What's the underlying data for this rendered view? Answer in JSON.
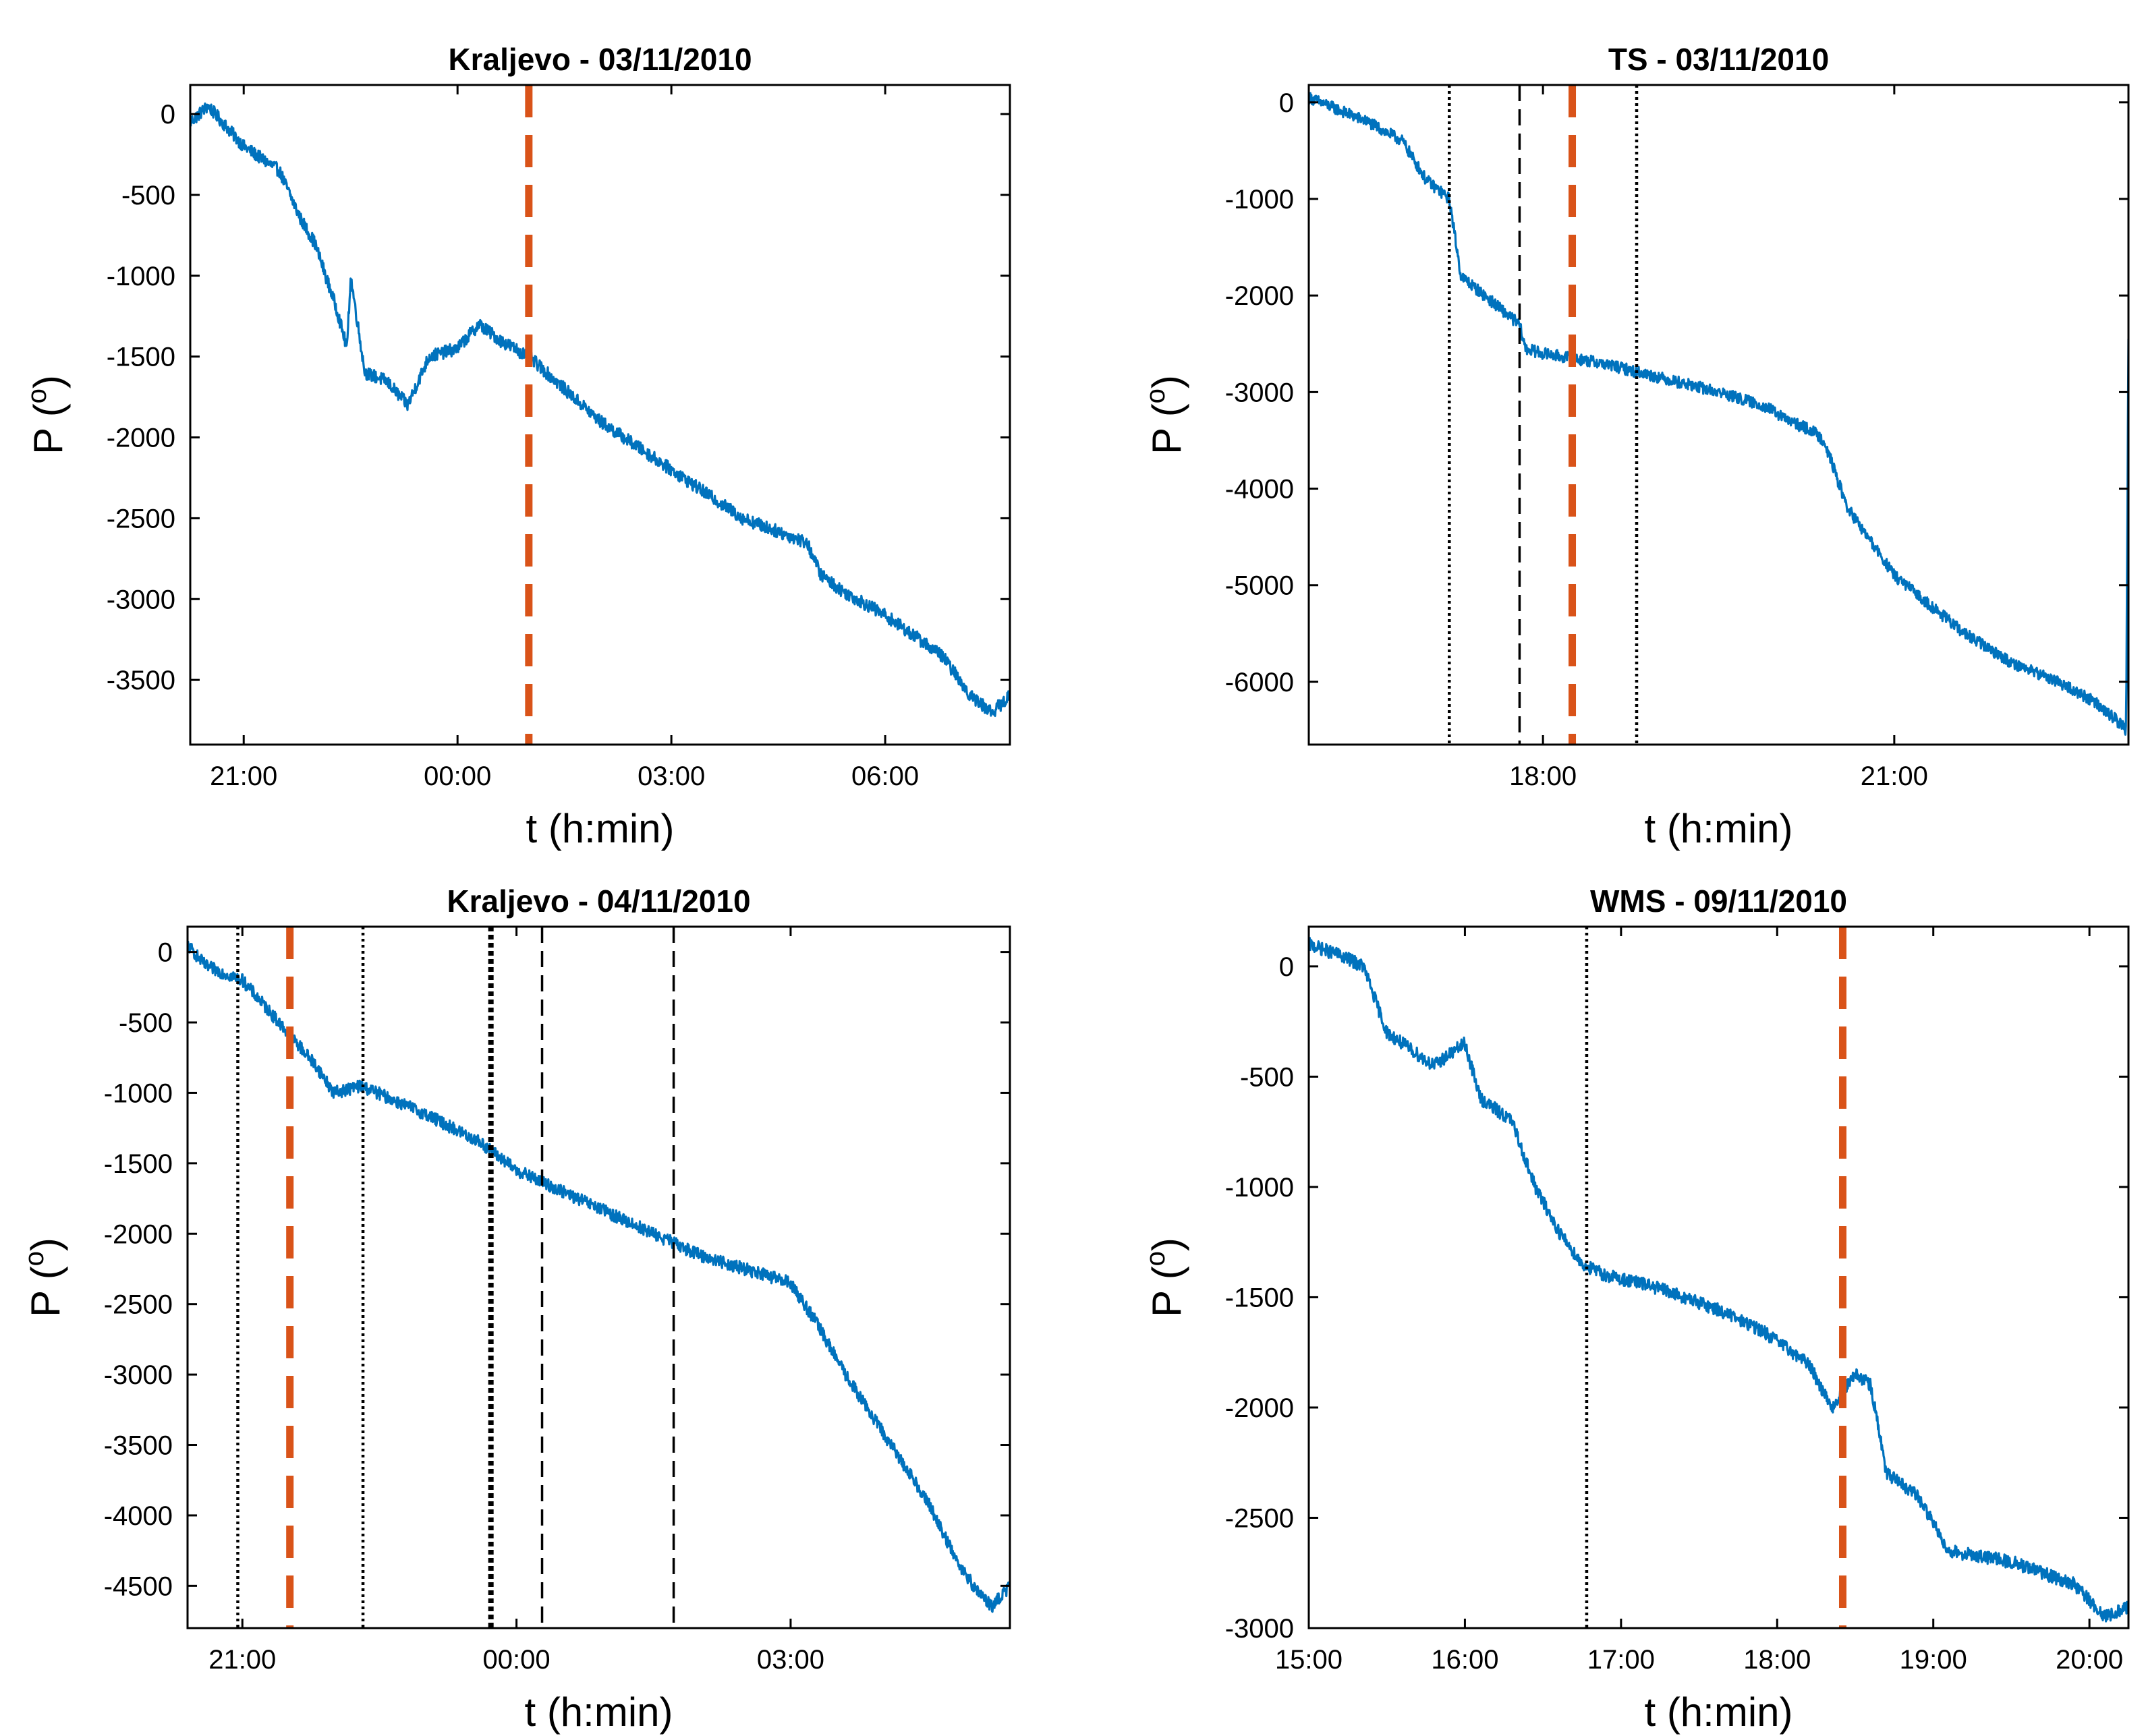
{
  "figure": {
    "background": "#ffffff"
  },
  "colors": {
    "series": "#0072BD",
    "event_line": "#D95319",
    "marker_line": "#000000",
    "axes": "#000000"
  },
  "chart_data": [
    {
      "type": "line",
      "title": "Kraljevo - 03/11/2010",
      "xlabel": "t (h:min)",
      "ylabel": "P (°)",
      "ylabel_main": "P (",
      "ylabel_sup": "o",
      "ylabel_close": ")",
      "x_unit": "hours since 00:00",
      "xlim": [
        -3.75,
        7.75
      ],
      "ylim": [
        -3900,
        180
      ],
      "xticks": [
        -3,
        0,
        3,
        6
      ],
      "xtick_labels": [
        "21:00",
        "00:00",
        "03:00",
        "06:00"
      ],
      "yticks": [
        0,
        -500,
        -1000,
        -1500,
        -2000,
        -2500,
        -3000,
        -3500
      ],
      "ytick_labels": [
        "0",
        "-500",
        "-1000",
        "-1500",
        "-2000",
        "-2500",
        "-3000",
        "-3500"
      ],
      "series": [
        {
          "name": "P",
          "noise": 40,
          "x": [
            -3.75,
            -3.5,
            -3.0,
            -2.5,
            -2.2,
            -2.0,
            -1.7,
            -1.55,
            -1.5,
            -1.3,
            -1.0,
            -0.7,
            -0.4,
            0.0,
            0.3,
            0.6,
            1.0,
            1.5,
            2.0,
            3.0,
            4.0,
            4.9,
            5.1,
            5.4,
            6.0,
            6.8,
            7.2,
            7.5,
            7.75
          ],
          "y": [
            -50,
            50,
            -200,
            -350,
            -650,
            -800,
            -1200,
            -1450,
            -1000,
            -1600,
            -1650,
            -1800,
            -1500,
            -1450,
            -1300,
            -1400,
            -1500,
            -1700,
            -1900,
            -2200,
            -2500,
            -2650,
            -2850,
            -2950,
            -3100,
            -3350,
            -3600,
            -3700,
            -3600
          ]
        }
      ],
      "vlines": [
        {
          "x": 1.0,
          "style": "orange-dash"
        }
      ]
    },
    {
      "type": "line",
      "title": "TS - 03/11/2010",
      "xlabel": "t (h:min)",
      "ylabel": "P (°)",
      "ylabel_main": "P (",
      "ylabel_sup": "o",
      "ylabel_close": ")",
      "x_unit": "hours since 00:00",
      "xlim": [
        16.0,
        23.0
      ],
      "ylim": [
        -6650,
        180
      ],
      "xticks": [
        18,
        21
      ],
      "xtick_labels": [
        "18:00",
        "21:00"
      ],
      "yticks": [
        0,
        -1000,
        -2000,
        -3000,
        -4000,
        -5000,
        -6000
      ],
      "ytick_labels": [
        "0",
        "-1000",
        "-2000",
        "-3000",
        "-4000",
        "-5000",
        "-6000"
      ],
      "series": [
        {
          "name": "P",
          "noise": 60,
          "x": [
            16.0,
            16.5,
            16.8,
            17.0,
            17.2,
            17.3,
            17.5,
            17.7,
            17.8,
            17.85,
            18.0,
            18.5,
            19.0,
            19.5,
            19.9,
            20.1,
            20.3,
            20.4,
            20.6,
            21.0,
            21.3,
            21.6,
            22.0,
            22.4,
            22.7,
            22.9,
            22.98,
            23.0
          ],
          "y": [
            50,
            -200,
            -400,
            -800,
            -1000,
            -1800,
            -2000,
            -2200,
            -2300,
            -2550,
            -2600,
            -2700,
            -2850,
            -3000,
            -3150,
            -3300,
            -3400,
            -3500,
            -4200,
            -4900,
            -5200,
            -5500,
            -5800,
            -6000,
            -6200,
            -6400,
            -6500,
            -2450
          ]
        }
      ],
      "vlines": [
        {
          "x": 17.2,
          "style": "dot"
        },
        {
          "x": 17.8,
          "style": "dash"
        },
        {
          "x": 18.25,
          "style": "orange-dash"
        },
        {
          "x": 18.8,
          "style": "dot"
        }
      ]
    },
    {
      "type": "line",
      "title": "Kraljevo - 04/11/2010",
      "xlabel": "t (h:min)",
      "ylabel": "P (°)",
      "ylabel_main": "P (",
      "ylabel_sup": "o",
      "ylabel_close": ")",
      "x_unit": "hours since 00:00",
      "xlim": [
        -3.6,
        5.4
      ],
      "ylim": [
        -4800,
        180
      ],
      "xticks": [
        -3,
        0,
        3
      ],
      "xtick_labels": [
        "21:00",
        "00:00",
        "03:00"
      ],
      "yticks": [
        0,
        -500,
        -1000,
        -1500,
        -2000,
        -2500,
        -3000,
        -3500,
        -4000,
        -4500
      ],
      "ytick_labels": [
        "0",
        "-500",
        "-1000",
        "-1500",
        "-2000",
        "-2500",
        "-3000",
        "-3500",
        "-4000",
        "-4500"
      ],
      "series": [
        {
          "name": "P",
          "noise": 45,
          "x": [
            -3.6,
            -3.4,
            -3.0,
            -2.8,
            -2.6,
            -2.4,
            -2.2,
            -2.0,
            -1.7,
            -1.0,
            -0.4,
            0.0,
            0.5,
            1.0,
            1.5,
            2.0,
            2.5,
            3.0,
            3.3,
            3.6,
            3.9,
            4.2,
            4.5,
            4.8,
            5.0,
            5.2,
            5.4
          ],
          "y": [
            50,
            -100,
            -200,
            -350,
            -500,
            -650,
            -800,
            -1000,
            -950,
            -1150,
            -1350,
            -1550,
            -1700,
            -1850,
            -2000,
            -2150,
            -2250,
            -2350,
            -2650,
            -3000,
            -3300,
            -3600,
            -3900,
            -4300,
            -4500,
            -4650,
            -4500
          ]
        }
      ],
      "vlines": [
        {
          "x": -3.05,
          "style": "dot"
        },
        {
          "x": -2.48,
          "style": "orange-dash"
        },
        {
          "x": -1.68,
          "style": "dot"
        },
        {
          "x": -0.28,
          "style": "thick-dot"
        },
        {
          "x": 0.28,
          "style": "dash"
        },
        {
          "x": 1.72,
          "style": "dash"
        }
      ]
    },
    {
      "type": "line",
      "title": "WMS - 09/11/2010",
      "xlabel": "t (h:min)",
      "ylabel": "P (°)",
      "ylabel_main": "P (",
      "ylabel_sup": "o",
      "ylabel_close": ")",
      "x_unit": "hours since 00:00",
      "xlim": [
        15.0,
        20.25
      ],
      "ylim": [
        -3000,
        180
      ],
      "xticks": [
        15,
        16,
        17,
        18,
        19,
        20
      ],
      "xtick_labels": [
        "15:00",
        "16:00",
        "17:00",
        "18:00",
        "19:00",
        "20:00"
      ],
      "yticks": [
        0,
        -500,
        -1000,
        -1500,
        -2000,
        -2500,
        -3000
      ],
      "ytick_labels": [
        "0",
        "-500",
        "-1000",
        "-1500",
        "-2000",
        "-2500",
        "-3000"
      ],
      "series": [
        {
          "name": "P",
          "noise": 30,
          "x": [
            15.0,
            15.2,
            15.35,
            15.5,
            15.8,
            16.0,
            16.1,
            16.3,
            16.45,
            16.6,
            16.75,
            16.9,
            17.2,
            17.6,
            17.9,
            18.2,
            18.35,
            18.5,
            18.6,
            18.7,
            18.9,
            19.1,
            19.5,
            19.9,
            20.1,
            20.25
          ],
          "y": [
            100,
            50,
            0,
            -300,
            -450,
            -350,
            -600,
            -700,
            -1000,
            -1200,
            -1350,
            -1400,
            -1450,
            -1550,
            -1650,
            -1800,
            -2000,
            -1850,
            -1900,
            -2300,
            -2400,
            -2650,
            -2700,
            -2800,
            -2950,
            -2900
          ]
        }
      ],
      "vlines": [
        {
          "x": 16.78,
          "style": "dot"
        },
        {
          "x": 18.42,
          "style": "orange-dash"
        }
      ]
    }
  ]
}
